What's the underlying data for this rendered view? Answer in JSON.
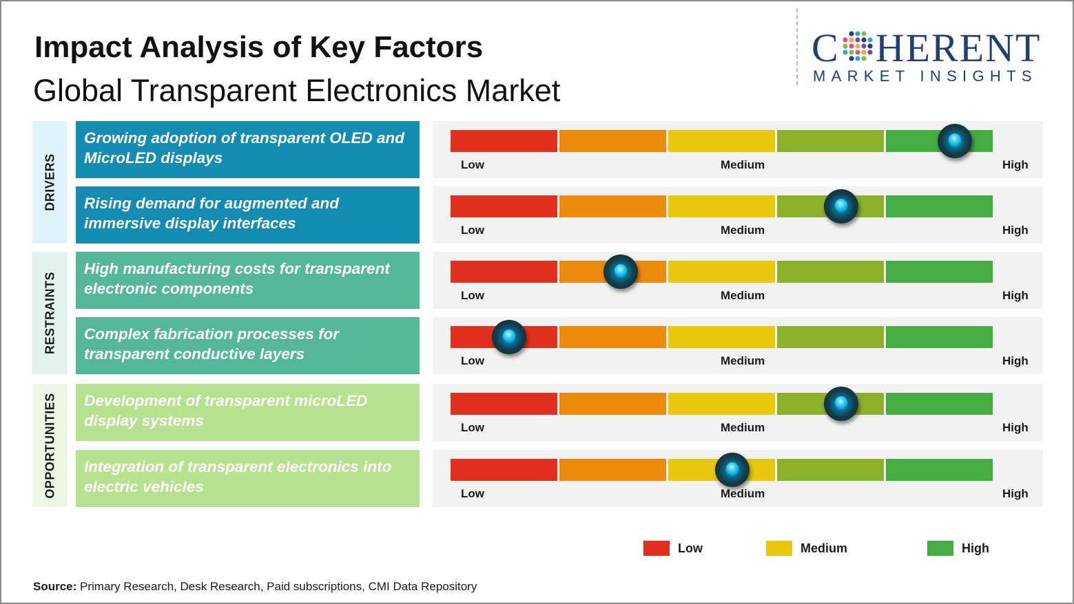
{
  "header": {
    "title": "Impact Analysis of Key Factors",
    "subtitle": "Global Transparent Electronics Market"
  },
  "logo": {
    "top_left": "C",
    "top_right": "HERENT",
    "bottom": "MARKET INSIGHTS",
    "color": "#1f3f7a"
  },
  "categories": [
    {
      "label": "DRIVERS",
      "color": "#dff3fb"
    },
    {
      "label": "RESTRAINTS",
      "color": "#e2f3ee"
    },
    {
      "label": "OPPORTUNITIES",
      "color": "#ebf7e4"
    }
  ],
  "scale": {
    "low_label": "Low",
    "medium_label": "Medium",
    "high_label": "High",
    "segment_colors": [
      "#e2301f",
      "#ee8a0b",
      "#e8c70c",
      "#8db02a",
      "#45ab43"
    ]
  },
  "chart_data": {
    "type": "table",
    "title": "Impact Analysis of Key Factors",
    "subtitle": "Global Transparent Electronics Market",
    "scale_range": [
      0,
      5
    ],
    "factors": [
      {
        "category": "DRIVERS",
        "text": "Growing adoption of transparent OLED and MicroLED displays",
        "impact": 4.65,
        "color": "#138bb3"
      },
      {
        "category": "DRIVERS",
        "text": "Rising demand for augmented and immersive display interfaces",
        "impact": 3.6,
        "color": "#138bb3"
      },
      {
        "category": "RESTRAINTS",
        "text": "High manufacturing costs for transparent electronic components",
        "impact": 1.57,
        "color": "#55b799"
      },
      {
        "category": "RESTRAINTS",
        "text": "Complex fabrication processes for transparent conductive layers",
        "impact": 0.54,
        "color": "#55b799"
      },
      {
        "category": "OPPORTUNITIES",
        "text": "Development of transparent microLED display systems",
        "impact": 3.6,
        "color": "#b6e18e"
      },
      {
        "category": "OPPORTUNITIES",
        "text": "Integration of transparent electronics into electric vehicles",
        "impact": 2.6,
        "color": "#b6e18e"
      }
    ],
    "legend": [
      {
        "label": "Low",
        "color": "#e2301f"
      },
      {
        "label": "Medium",
        "color": "#e8c70c"
      },
      {
        "label": "High",
        "color": "#45ab43"
      }
    ]
  },
  "source": {
    "prefix": "Source:",
    "text": "Primary Research, Desk Research, Paid subscriptions, CMI Data Repository"
  }
}
